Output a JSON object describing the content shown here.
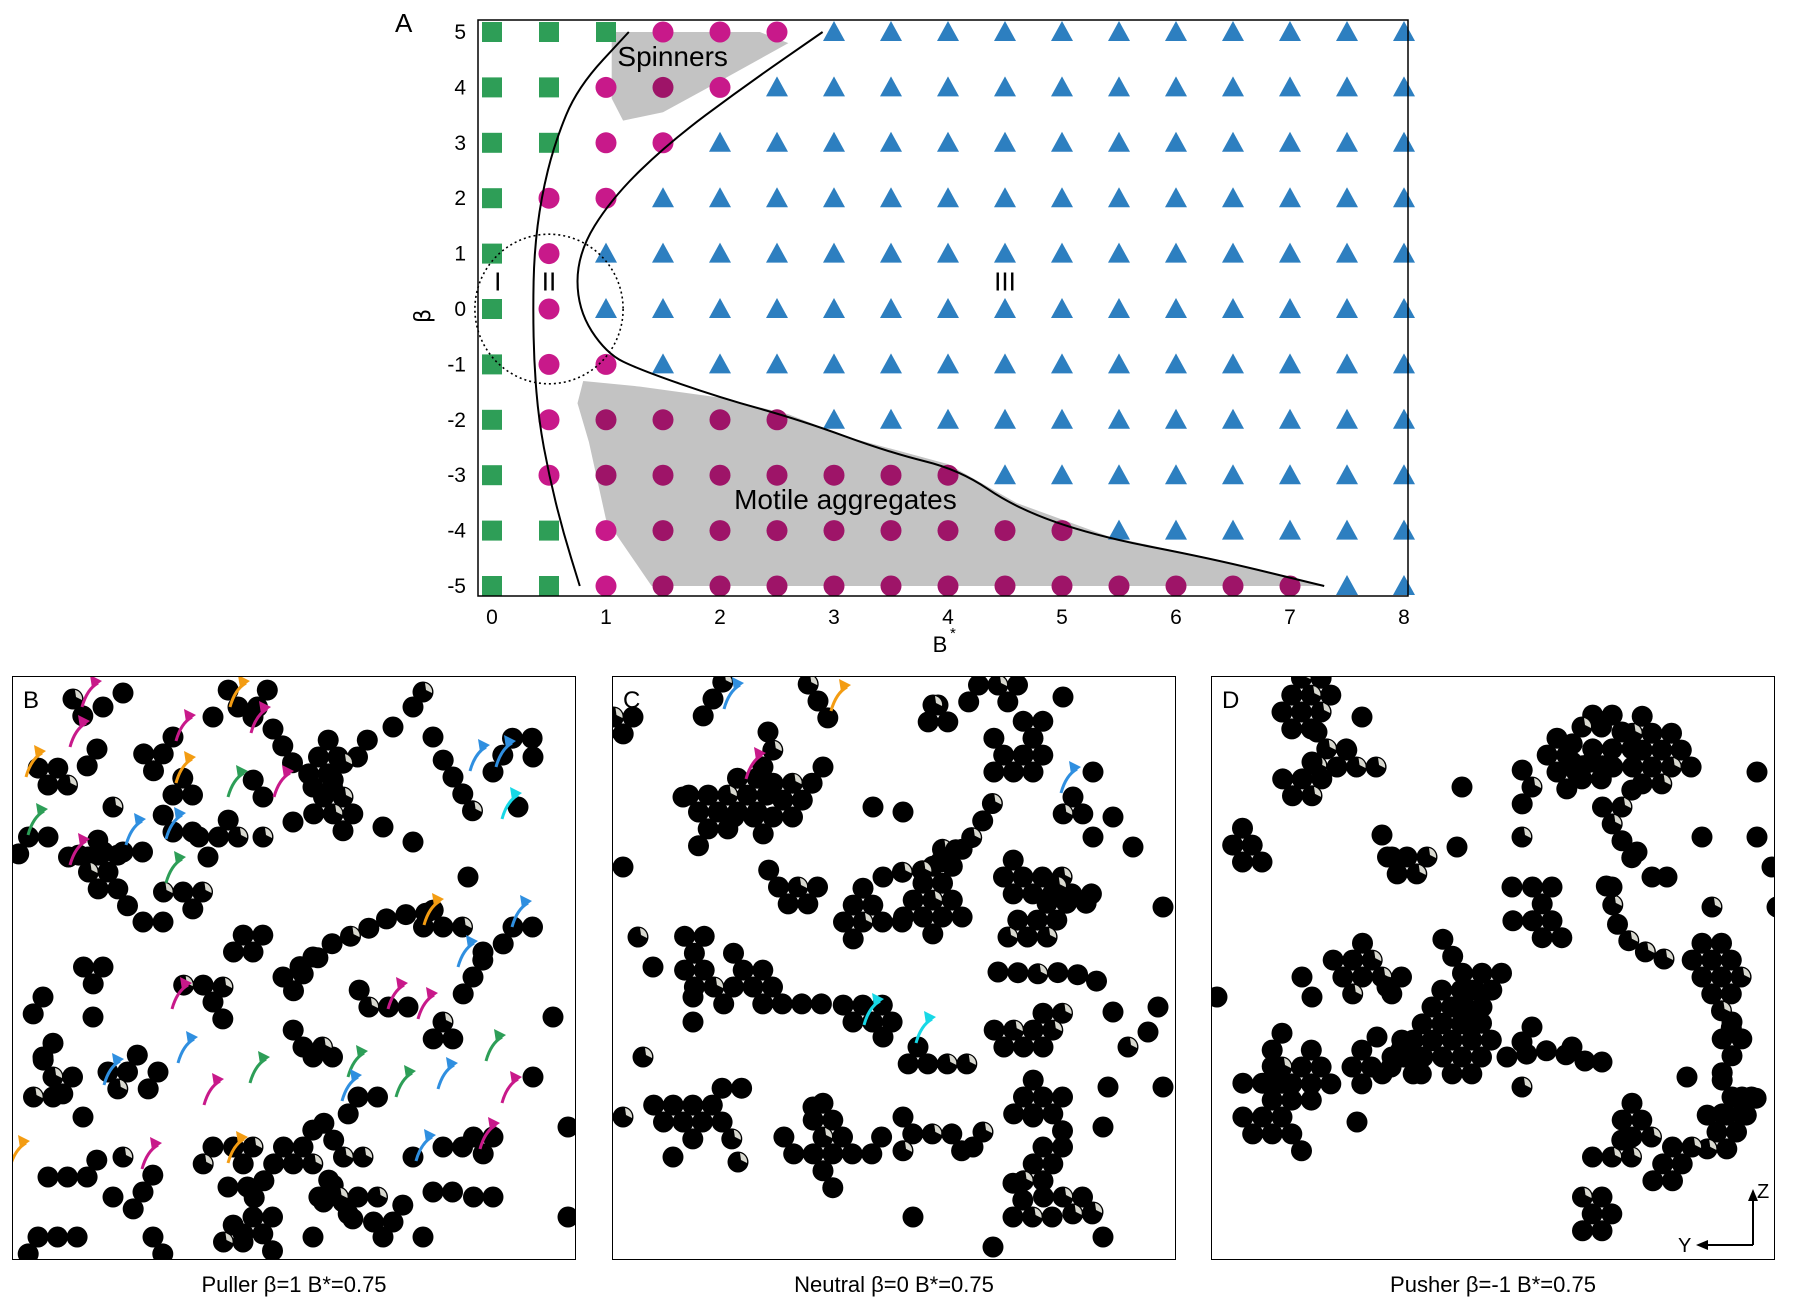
{
  "figure": {
    "panel_a": {
      "letter": "A",
      "region_labels": [
        "I",
        "II",
        "III"
      ],
      "annotations": [
        "Spinners",
        "Motile aggregates"
      ]
    },
    "panels": [
      {
        "letter": "B",
        "caption": "Puller  β=1  B*=0.75"
      },
      {
        "letter": "C",
        "caption": "Neutral  β=0  B*=0.75"
      },
      {
        "letter": "D",
        "caption": "Pusher  β=-1  B*=0.75"
      }
    ],
    "axes_glyph": {
      "z": "Z",
      "y": "Y"
    }
  },
  "colors": {
    "square": "#2e9e57",
    "circle": "#c8198a",
    "circle_shaded": "#9e1468",
    "triangle": "#2d7fc0",
    "shade": "#c3c3c3",
    "arrows": [
      "#f39c12",
      "#c8198a",
      "#2d9e57",
      "#2f8fe0",
      "#17d8e6"
    ]
  },
  "chart_data": {
    "type": "scatter",
    "xlabel": "B*",
    "ylabel": "β",
    "xlim": [
      0,
      8
    ],
    "ylim": [
      -5,
      5
    ],
    "xticks": [
      0,
      1,
      2,
      3,
      4,
      5,
      6,
      7,
      8
    ],
    "yticks": [
      5,
      4,
      3,
      2,
      1,
      0,
      -1,
      -2,
      -3,
      -4,
      -5
    ],
    "grid": false,
    "legend": "none",
    "series": [
      {
        "marker": "square",
        "points": [
          [
            0,
            5
          ],
          [
            0.5,
            5
          ],
          [
            1,
            5
          ],
          [
            0,
            4
          ],
          [
            0.5,
            4
          ],
          [
            0,
            3
          ],
          [
            0.5,
            3
          ],
          [
            0,
            2
          ],
          [
            0,
            1
          ],
          [
            0,
            0
          ],
          [
            0,
            -1
          ],
          [
            0,
            -2
          ],
          [
            0,
            -3
          ],
          [
            0,
            -4
          ],
          [
            0.5,
            -4
          ],
          [
            0,
            -5
          ],
          [
            0.5,
            -5
          ]
        ]
      },
      {
        "marker": "circle",
        "points": [
          [
            1.5,
            5
          ],
          [
            2,
            5
          ],
          [
            2.5,
            5
          ],
          [
            1,
            4
          ],
          [
            1.5,
            4
          ],
          [
            2,
            4
          ],
          [
            1,
            3
          ],
          [
            1.5,
            3
          ],
          [
            0.5,
            2
          ],
          [
            1,
            2
          ],
          [
            0.5,
            1
          ],
          [
            0.5,
            0
          ],
          [
            0.5,
            -1
          ],
          [
            1,
            -1
          ],
          [
            0.5,
            -2
          ],
          [
            1,
            -2
          ],
          [
            1.5,
            -2
          ],
          [
            2,
            -2
          ],
          [
            2.5,
            -2
          ],
          [
            0.5,
            -3
          ],
          [
            1,
            -3
          ],
          [
            1.5,
            -3
          ],
          [
            2,
            -3
          ],
          [
            2.5,
            -3
          ],
          [
            3,
            -3
          ],
          [
            3.5,
            -3
          ],
          [
            4,
            -3
          ],
          [
            1,
            -4
          ],
          [
            1.5,
            -4
          ],
          [
            2,
            -4
          ],
          [
            2.5,
            -4
          ],
          [
            3,
            -4
          ],
          [
            3.5,
            -4
          ],
          [
            4,
            -4
          ],
          [
            4.5,
            -4
          ],
          [
            5,
            -4
          ],
          [
            1,
            -5
          ],
          [
            1.5,
            -5
          ],
          [
            2,
            -5
          ],
          [
            2.5,
            -5
          ],
          [
            3,
            -5
          ],
          [
            3.5,
            -5
          ],
          [
            4,
            -5
          ],
          [
            4.5,
            -5
          ],
          [
            5,
            -5
          ],
          [
            5.5,
            -5
          ],
          [
            6,
            -5
          ],
          [
            6.5,
            -5
          ],
          [
            7,
            -5
          ]
        ]
      },
      {
        "marker": "triangle",
        "points": [
          [
            3,
            5
          ],
          [
            3.5,
            5
          ],
          [
            4,
            5
          ],
          [
            4.5,
            5
          ],
          [
            5,
            5
          ],
          [
            5.5,
            5
          ],
          [
            6,
            5
          ],
          [
            6.5,
            5
          ],
          [
            7,
            5
          ],
          [
            7.5,
            5
          ],
          [
            8,
            5
          ],
          [
            2.5,
            4
          ],
          [
            3,
            4
          ],
          [
            3.5,
            4
          ],
          [
            4,
            4
          ],
          [
            4.5,
            4
          ],
          [
            5,
            4
          ],
          [
            5.5,
            4
          ],
          [
            6,
            4
          ],
          [
            6.5,
            4
          ],
          [
            7,
            4
          ],
          [
            7.5,
            4
          ],
          [
            8,
            4
          ],
          [
            2,
            3
          ],
          [
            2.5,
            3
          ],
          [
            3,
            3
          ],
          [
            3.5,
            3
          ],
          [
            4,
            3
          ],
          [
            4.5,
            3
          ],
          [
            5,
            3
          ],
          [
            5.5,
            3
          ],
          [
            6,
            3
          ],
          [
            6.5,
            3
          ],
          [
            7,
            3
          ],
          [
            7.5,
            3
          ],
          [
            8,
            3
          ],
          [
            1.5,
            2
          ],
          [
            2,
            2
          ],
          [
            2.5,
            2
          ],
          [
            3,
            2
          ],
          [
            3.5,
            2
          ],
          [
            4,
            2
          ],
          [
            4.5,
            2
          ],
          [
            5,
            2
          ],
          [
            5.5,
            2
          ],
          [
            6,
            2
          ],
          [
            6.5,
            2
          ],
          [
            7,
            2
          ],
          [
            7.5,
            2
          ],
          [
            8,
            2
          ],
          [
            1,
            1
          ],
          [
            1.5,
            1
          ],
          [
            2,
            1
          ],
          [
            2.5,
            1
          ],
          [
            3,
            1
          ],
          [
            3.5,
            1
          ],
          [
            4,
            1
          ],
          [
            4.5,
            1
          ],
          [
            5,
            1
          ],
          [
            5.5,
            1
          ],
          [
            6,
            1
          ],
          [
            6.5,
            1
          ],
          [
            7,
            1
          ],
          [
            7.5,
            1
          ],
          [
            8,
            1
          ],
          [
            1,
            0
          ],
          [
            1.5,
            0
          ],
          [
            2,
            0
          ],
          [
            2.5,
            0
          ],
          [
            3,
            0
          ],
          [
            3.5,
            0
          ],
          [
            4,
            0
          ],
          [
            4.5,
            0
          ],
          [
            5,
            0
          ],
          [
            5.5,
            0
          ],
          [
            6,
            0
          ],
          [
            6.5,
            0
          ],
          [
            7,
            0
          ],
          [
            7.5,
            0
          ],
          [
            8,
            0
          ],
          [
            1.5,
            -1
          ],
          [
            2,
            -1
          ],
          [
            2.5,
            -1
          ],
          [
            3,
            -1
          ],
          [
            3.5,
            -1
          ],
          [
            4,
            -1
          ],
          [
            4.5,
            -1
          ],
          [
            5,
            -1
          ],
          [
            5.5,
            -1
          ],
          [
            6,
            -1
          ],
          [
            6.5,
            -1
          ],
          [
            7,
            -1
          ],
          [
            7.5,
            -1
          ],
          [
            8,
            -1
          ],
          [
            3,
            -2
          ],
          [
            3.5,
            -2
          ],
          [
            4,
            -2
          ],
          [
            4.5,
            -2
          ],
          [
            5,
            -2
          ],
          [
            5.5,
            -2
          ],
          [
            6,
            -2
          ],
          [
            6.5,
            -2
          ],
          [
            7,
            -2
          ],
          [
            7.5,
            -2
          ],
          [
            8,
            -2
          ],
          [
            4.5,
            -3
          ],
          [
            5,
            -3
          ],
          [
            5.5,
            -3
          ],
          [
            6,
            -3
          ],
          [
            6.5,
            -3
          ],
          [
            7,
            -3
          ],
          [
            7.5,
            -3
          ],
          [
            8,
            -3
          ],
          [
            5.5,
            -4
          ],
          [
            6,
            -4
          ],
          [
            6.5,
            -4
          ],
          [
            7,
            -4
          ],
          [
            7.5,
            -4
          ],
          [
            8,
            -4
          ],
          [
            7.5,
            -5
          ],
          [
            8,
            -5
          ]
        ]
      }
    ],
    "shaded_regions": [
      {
        "label": "Spinners",
        "boundary": [
          [
            1.05,
            5
          ],
          [
            2.35,
            5
          ],
          [
            2.6,
            4.8
          ],
          [
            1.9,
            4.0
          ],
          [
            1.5,
            3.55
          ],
          [
            1.15,
            3.4
          ],
          [
            1.05,
            3.8
          ]
        ]
      },
      {
        "label": "Motile aggregates",
        "boundary": [
          [
            0.8,
            -1.3
          ],
          [
            1.3,
            -1.4
          ],
          [
            2,
            -1.6
          ],
          [
            2.6,
            -1.9
          ],
          [
            3.1,
            -2.3
          ],
          [
            4,
            -2.8
          ],
          [
            4.6,
            -3.5
          ],
          [
            5.4,
            -4.1
          ],
          [
            6.3,
            -4.5
          ],
          [
            7.1,
            -4.9
          ],
          [
            7.3,
            -5
          ],
          [
            1.4,
            -5
          ],
          [
            1,
            -3.8
          ],
          [
            0.85,
            -2.4
          ],
          [
            0.75,
            -1.7
          ]
        ]
      }
    ],
    "boundary_lines": [
      {
        "between": [
          "I",
          "II"
        ],
        "points": [
          [
            1.2,
            5
          ],
          [
            0.75,
            4
          ],
          [
            0.55,
            3
          ],
          [
            0.43,
            2
          ],
          [
            0.37,
            1
          ],
          [
            0.36,
            0
          ],
          [
            0.37,
            -1
          ],
          [
            0.41,
            -2
          ],
          [
            0.5,
            -3
          ],
          [
            0.62,
            -4
          ],
          [
            0.77,
            -5
          ]
        ]
      },
      {
        "between": [
          "II",
          "III"
        ],
        "points": [
          [
            2.9,
            5
          ],
          [
            2.2,
            4
          ],
          [
            1.55,
            3
          ],
          [
            1.05,
            2
          ],
          [
            0.75,
            1
          ],
          [
            0.75,
            0
          ],
          [
            1.0,
            -0.8
          ],
          [
            1.3,
            -1.1
          ],
          [
            2,
            -1.6
          ],
          [
            2.7,
            -2
          ],
          [
            3.5,
            -2.6
          ],
          [
            4.1,
            -2.9
          ],
          [
            4.6,
            -3.6
          ],
          [
            5.3,
            -4.1
          ],
          [
            6.3,
            -4.5
          ],
          [
            7.1,
            -4.9
          ],
          [
            7.3,
            -5
          ]
        ]
      }
    ],
    "region_label_positions": {
      "I": [
        0.05,
        0.5
      ],
      "II": [
        0.5,
        0.5
      ],
      "III": [
        4.5,
        0.5
      ]
    },
    "dotted_circle": {
      "center": [
        0.5,
        0
      ],
      "radius_x": 0.65,
      "radius_y": 1.35
    }
  }
}
